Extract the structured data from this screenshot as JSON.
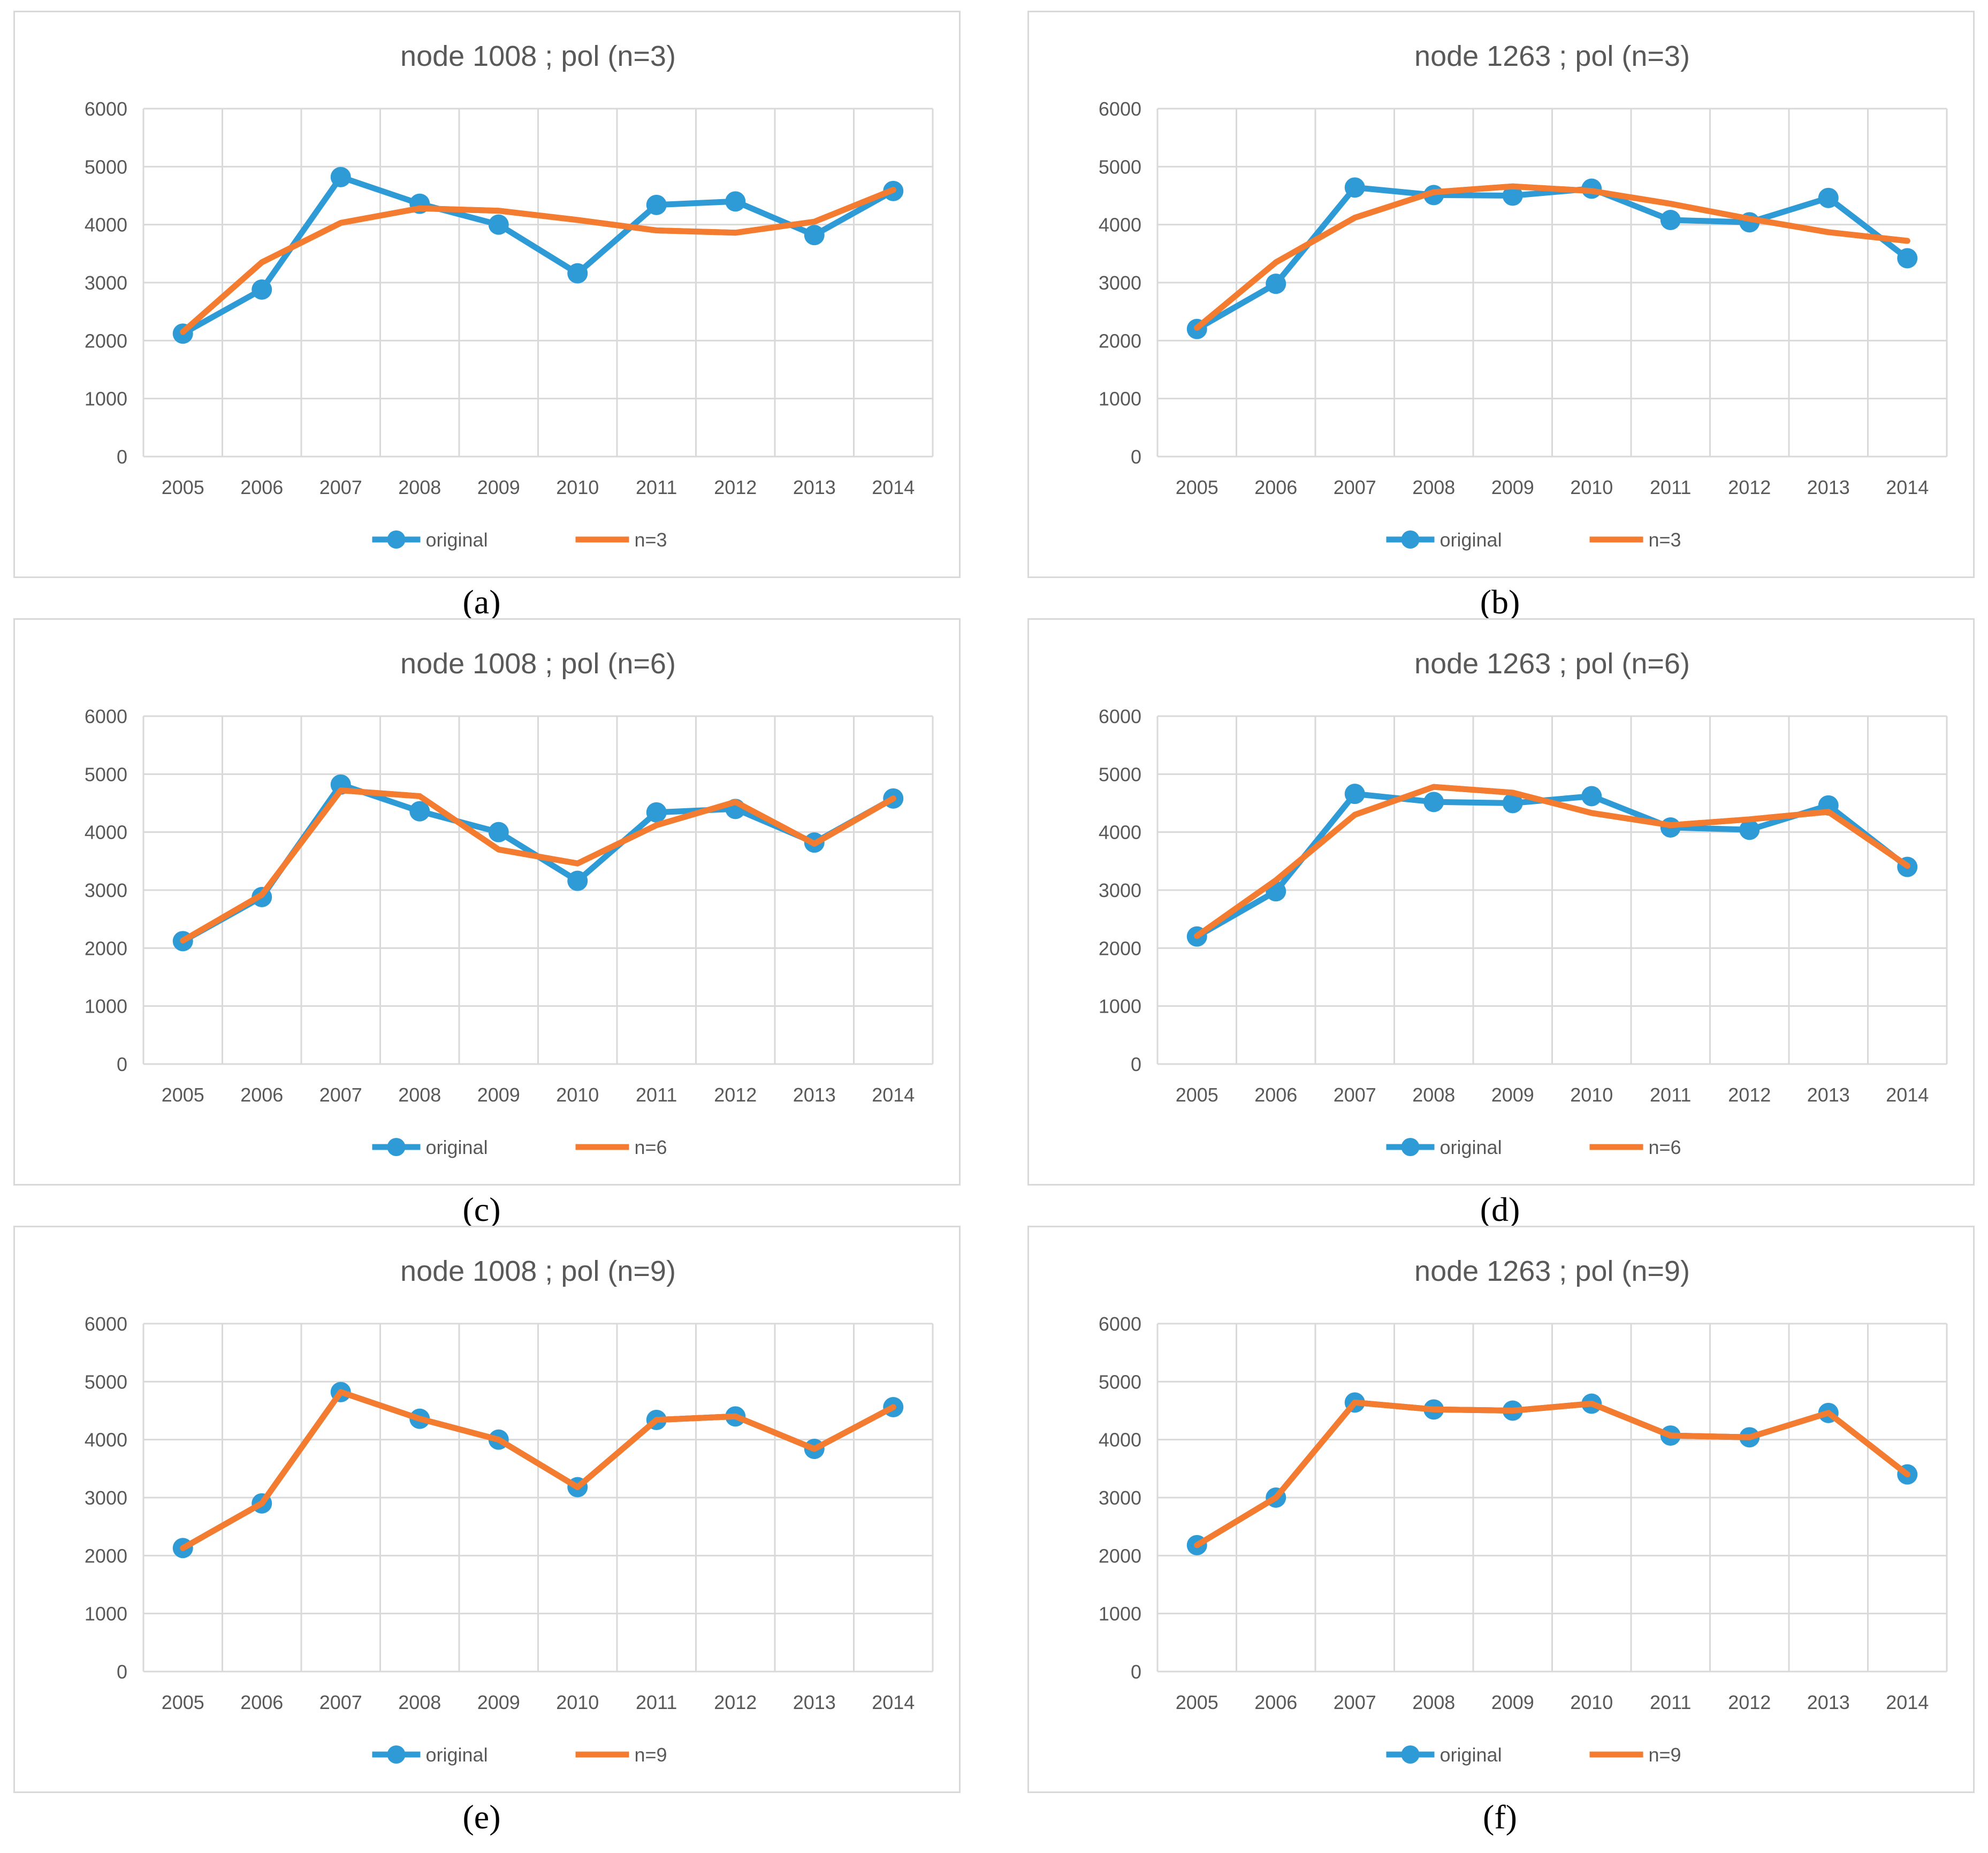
{
  "colors": {
    "original": "#2e9bd6",
    "fit": "#f47c30",
    "grid": "#d9d9d9",
    "text": "#595959",
    "title": "#595959"
  },
  "chart_data": [
    {
      "type": "line",
      "title": "node 1008 ; pol (n=3)",
      "caption": "(a)",
      "categories": [
        "2005",
        "2006",
        "2007",
        "2008",
        "2009",
        "2010",
        "2011",
        "2012",
        "2013",
        "2014"
      ],
      "ylim": [
        0,
        6000
      ],
      "yticks": [
        0,
        1000,
        2000,
        3000,
        4000,
        5000,
        6000
      ],
      "series": [
        {
          "name": "original",
          "values": [
            2120,
            2880,
            4820,
            4360,
            4000,
            3160,
            4340,
            4400,
            3820,
            4580
          ],
          "markers": true
        },
        {
          "name": "n=3",
          "values": [
            2150,
            3350,
            4030,
            4280,
            4240,
            4080,
            3900,
            3860,
            4050,
            4600
          ],
          "markers": false
        }
      ]
    },
    {
      "type": "line",
      "title": "node 1263 ; pol (n=3)",
      "caption": "(b)",
      "categories": [
        "2005",
        "2006",
        "2007",
        "2008",
        "2009",
        "2010",
        "2011",
        "2012",
        "2013",
        "2014"
      ],
      "ylim": [
        0,
        6000
      ],
      "yticks": [
        0,
        1000,
        2000,
        3000,
        4000,
        5000,
        6000
      ],
      "series": [
        {
          "name": "original",
          "values": [
            2200,
            2980,
            4640,
            4510,
            4500,
            4620,
            4080,
            4040,
            4460,
            3420
          ],
          "markers": true
        },
        {
          "name": "n=3",
          "values": [
            2220,
            3350,
            4120,
            4560,
            4660,
            4580,
            4360,
            4100,
            3870,
            3720
          ],
          "markers": false
        }
      ]
    },
    {
      "type": "line",
      "title": "node 1008 ; pol (n=6)",
      "caption": "(c)",
      "categories": [
        "2005",
        "2006",
        "2007",
        "2008",
        "2009",
        "2010",
        "2011",
        "2012",
        "2013",
        "2014"
      ],
      "ylim": [
        0,
        6000
      ],
      "yticks": [
        0,
        1000,
        2000,
        3000,
        4000,
        5000,
        6000
      ],
      "series": [
        {
          "name": "original",
          "values": [
            2120,
            2880,
            4820,
            4360,
            4000,
            3160,
            4340,
            4400,
            3820,
            4580
          ],
          "markers": true
        },
        {
          "name": "n=6",
          "values": [
            2130,
            2920,
            4720,
            4620,
            3700,
            3460,
            4120,
            4520,
            3800,
            4580
          ],
          "markers": false
        }
      ]
    },
    {
      "type": "line",
      "title": "node 1263 ; pol (n=6)",
      "caption": "(d)",
      "categories": [
        "2005",
        "2006",
        "2007",
        "2008",
        "2009",
        "2010",
        "2011",
        "2012",
        "2013",
        "2014"
      ],
      "ylim": [
        0,
        6000
      ],
      "yticks": [
        0,
        1000,
        2000,
        3000,
        4000,
        5000,
        6000
      ],
      "series": [
        {
          "name": "original",
          "values": [
            2200,
            2980,
            4660,
            4520,
            4500,
            4620,
            4080,
            4040,
            4460,
            3400
          ],
          "markers": true
        },
        {
          "name": "n=6",
          "values": [
            2210,
            3170,
            4300,
            4780,
            4680,
            4330,
            4120,
            4220,
            4350,
            3420
          ],
          "markers": false
        }
      ]
    },
    {
      "type": "line",
      "title": "node 1008 ; pol (n=9)",
      "caption": "(e)",
      "categories": [
        "2005",
        "2006",
        "2007",
        "2008",
        "2009",
        "2010",
        "2011",
        "2012",
        "2013",
        "2014"
      ],
      "ylim": [
        0,
        6000
      ],
      "yticks": [
        0,
        1000,
        2000,
        3000,
        4000,
        5000,
        6000
      ],
      "series": [
        {
          "name": "original",
          "values": [
            2130,
            2900,
            4820,
            4360,
            4000,
            3180,
            4340,
            4400,
            3840,
            4560
          ],
          "markers": true
        },
        {
          "name": "n=9",
          "values": [
            2130,
            2900,
            4820,
            4360,
            4000,
            3180,
            4340,
            4400,
            3840,
            4560
          ],
          "markers": false
        }
      ]
    },
    {
      "type": "line",
      "title": "node 1263 ; pol (n=9)",
      "caption": "(f)",
      "categories": [
        "2005",
        "2006",
        "2007",
        "2008",
        "2009",
        "2010",
        "2011",
        "2012",
        "2013",
        "2014"
      ],
      "ylim": [
        0,
        6000
      ],
      "yticks": [
        0,
        1000,
        2000,
        3000,
        4000,
        5000,
        6000
      ],
      "series": [
        {
          "name": "original",
          "values": [
            2180,
            3000,
            4640,
            4520,
            4500,
            4620,
            4070,
            4040,
            4460,
            3400
          ],
          "markers": true
        },
        {
          "name": "n=9",
          "values": [
            2180,
            3000,
            4640,
            4520,
            4500,
            4620,
            4070,
            4040,
            4460,
            3400
          ],
          "markers": false
        }
      ]
    }
  ]
}
